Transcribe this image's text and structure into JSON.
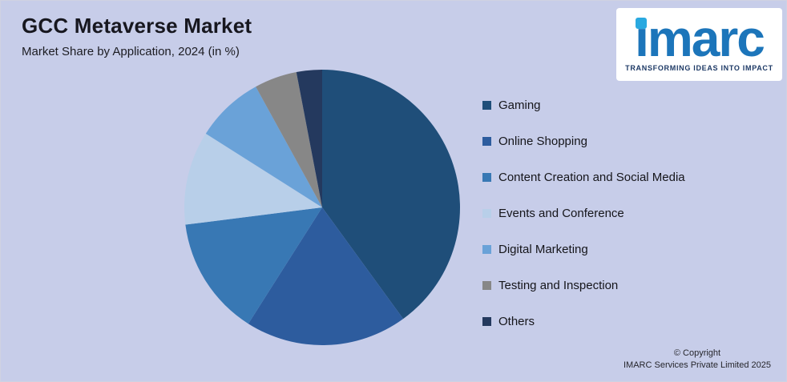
{
  "colors": {
    "background": "#c7cde9",
    "logo_blue": "#1c75ba",
    "logo_dot_blue": "#2aa9e0",
    "tagline_navy": "#1e3a66"
  },
  "header": {
    "title": "GCC Metaverse Market",
    "subtitle": "Market Share by Application, 2024 (in %)"
  },
  "logo": {
    "brand": "imarc",
    "tagline": "TRANSFORMING IDEAS INTO IMPACT"
  },
  "footer": {
    "copyright_line1": "© Copyright",
    "copyright_line2": "IMARC Services Private Limited 2025"
  },
  "chart_data": {
    "type": "pie",
    "title": "GCC Metaverse Market",
    "subtitle": "Market Share by Application, 2024 (in %)",
    "unit": "%",
    "categories": [
      "Gaming",
      "Online Shopping",
      "Content Creation and Social Media",
      "Events and Conference",
      "Digital Marketing",
      "Testing and Inspection",
      "Others"
    ],
    "values": [
      40,
      19,
      14,
      11,
      8,
      5,
      3
    ],
    "colors": [
      "#1f4e79",
      "#2d5c9e",
      "#3878b4",
      "#b8cfe9",
      "#6aa2d8",
      "#878787",
      "#24395e"
    ],
    "legend_position": "right",
    "start_angle_deg": 0,
    "direction": "clockwise",
    "data_labels": false
  }
}
